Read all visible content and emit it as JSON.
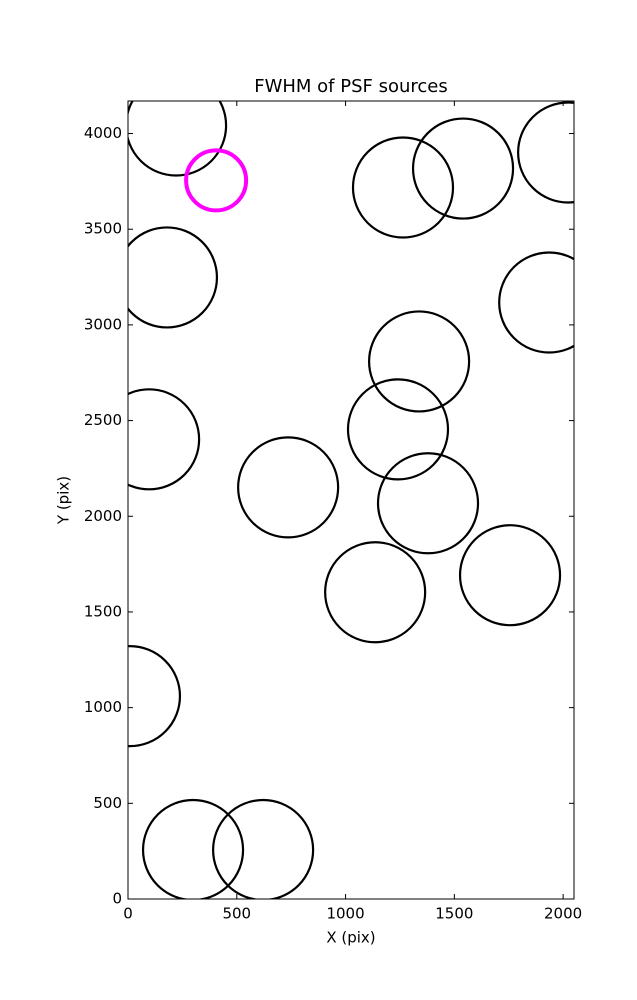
{
  "chart_data": {
    "type": "scatter",
    "title": "FWHM of PSF sources",
    "x_label": "X (pix)",
    "y_label": "Y (pix)",
    "xlim": [
      0,
      2050
    ],
    "ylim": [
      0,
      4170
    ],
    "xticks": [
      0,
      500,
      1000,
      1500,
      2000
    ],
    "yticks": [
      0,
      500,
      1000,
      1500,
      2000,
      2500,
      3000,
      3500,
      4000
    ],
    "series": [
      {
        "color": "#000000",
        "x": [
          221,
          1264,
          1540,
          2023,
          179,
          1936,
          1338,
          97,
          1241,
          736,
          1379,
          1756,
          1136,
          9,
          299,
          621
        ],
        "y": [
          4042,
          3718,
          3817,
          3901,
          3248,
          3117,
          2809,
          2402,
          2454,
          2151,
          2068,
          1692,
          1603,
          1060,
          256,
          256
        ]
      },
      {
        "color": "#ff00ff",
        "x": [
          405
        ],
        "y": [
          3755
        ]
      }
    ]
  }
}
